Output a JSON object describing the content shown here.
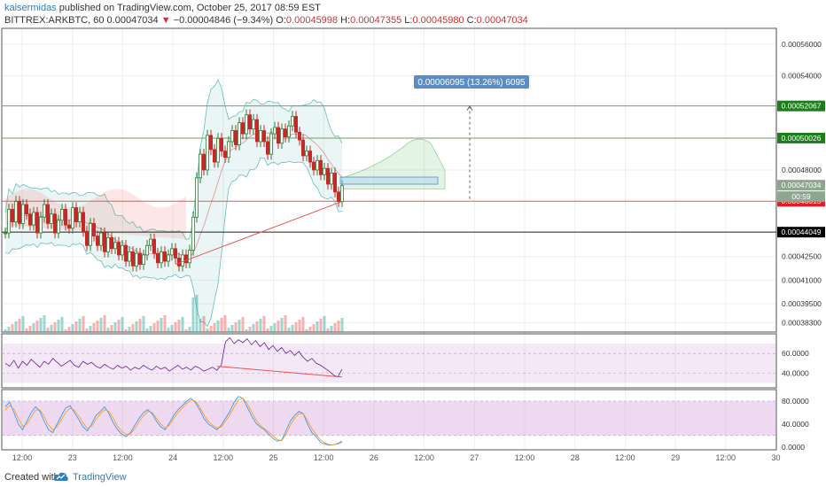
{
  "header": {
    "user": "kaisermidas",
    "published": " published on TradingView.com, October 25, 2017 08:59 EST",
    "symbol": "BITTREX:ARKBTC, 60",
    "last": "0.00047034",
    "change_arrow": "▼",
    "change": "−0.00004846 (−9.34%)",
    "o_label": "O:",
    "o": "0.00045998",
    "h_label": "H:",
    "h": "0.00047355",
    "l_label": "L:",
    "l": "0.00045980",
    "c_label": "C:",
    "c": "0.00047034"
  },
  "footer": {
    "created_with": "Created with",
    "brand": "TradingView"
  },
  "colors": {
    "up": "#26a69a",
    "down": "#ef5350",
    "candle_up_body": "#ffffff",
    "grid": "#eeeeee",
    "green_label": "#1b7e1b",
    "red_label": "#e51c23",
    "black_label": "#000000",
    "grey_green_label": "#8fa58f"
  },
  "chart_data": [
    {
      "type": "candlestick",
      "title": "",
      "x_ticks": [
        "12:00",
        "23",
        "12:00",
        "24",
        "12:00",
        "25",
        "12:00",
        "26",
        "12:00",
        "27",
        "12:00",
        "28",
        "12:00",
        "29",
        "12:00",
        "30"
      ],
      "y_ticks": [
        "0.00056000",
        "0.00054000",
        "0.00048000",
        "0.00042500",
        "0.00041000",
        "0.00039500",
        "0.00038300"
      ],
      "ylim": [
        0.000377,
        0.00057
      ],
      "price_labels": [
        {
          "value": 0.00052067,
          "text": "0.00052067",
          "style": "green"
        },
        {
          "value": 0.00050026,
          "text": "0.00050026",
          "style": "green"
        },
        {
          "value": 0.00047034,
          "text": "0.00047034",
          "style": "greygreen"
        },
        {
          "value": 0.00046015,
          "text": "0.00046015",
          "style": "red"
        },
        {
          "value": 0.00044049,
          "text": "0.00044049",
          "style": "black"
        }
      ],
      "countdown": "00:59",
      "measure_label": "0.00006095 (13.26%) 6095",
      "horizontal_lines": [
        0.00052067,
        0.00050026,
        0.00046015,
        0.00044049
      ],
      "candles_close": [
        0.00044,
        0.000455,
        0.000447,
        0.00046,
        0.000446,
        0.000458,
        0.000452,
        0.000445,
        0.000453,
        0.00044,
        0.00045,
        0.000458,
        0.000446,
        0.000452,
        0.00044,
        0.000448,
        0.000455,
        0.000445,
        0.000443,
        0.000456,
        0.000447,
        0.000453,
        0.000441,
        0.000432,
        0.000446,
        0.000438,
        0.000432,
        0.00044,
        0.000428,
        0.000437,
        0.00043,
        0.000434,
        0.000426,
        0.000432,
        0.000422,
        0.000428,
        0.000419,
        0.000427,
        0.00042,
        0.000426,
        0.000432,
        0.000436,
        0.000427,
        0.000421,
        0.000428,
        0.000422,
        0.000426,
        0.00043,
        0.000424,
        0.000419,
        0.000426,
        0.000421,
        0.000429,
        0.00045,
        0.000475,
        0.00049,
        0.00048,
        0.000502,
        0.000493,
        0.000485,
        0.0005,
        0.000492,
        0.000488,
        0.000498,
        0.000505,
        0.000496,
        0.00051,
        0.000503,
        0.000515,
        0.000506,
        0.000512,
        0.000498,
        0.000505,
        0.000498,
        0.00049,
        0.000503,
        0.000507,
        0.000497,
        0.000506,
        0.000501,
        0.000508,
        0.000514,
        0.000504,
        0.000499,
        0.000489,
        0.000492,
        0.000485,
        0.00048,
        0.000486,
        0.000477,
        0.000481,
        0.000471,
        0.000478,
        0.000466,
        0.00046,
        0.00047
      ]
    },
    {
      "type": "line",
      "name": "",
      "y_ticks": [
        "60.0000",
        "40.0000"
      ],
      "ylim": [
        25,
        80
      ],
      "values": [
        50,
        47,
        53,
        45,
        52,
        48,
        54,
        50,
        46,
        52,
        49,
        55,
        51,
        47,
        50,
        53,
        48,
        46,
        52,
        49,
        51,
        47,
        45,
        49,
        46,
        44,
        48,
        45,
        47,
        43,
        46,
        44,
        48,
        45,
        43,
        47,
        44,
        46,
        42,
        45,
        48,
        44,
        46,
        43,
        47,
        45,
        42,
        44,
        46,
        43,
        48,
        72,
        76,
        70,
        74,
        71,
        75,
        69,
        73,
        67,
        71,
        64,
        68,
        62,
        66,
        60,
        63,
        58,
        62,
        56,
        52,
        55,
        50,
        48,
        45,
        42,
        38,
        36,
        44
      ],
      "divergence_line": {
        "from_index": 49,
        "from": 47,
        "to_index": 78,
        "to": 36
      }
    },
    {
      "type": "line",
      "name": "",
      "y_ticks": [
        "80.0000",
        "40.0000",
        "0.0000"
      ],
      "ylim": [
        -5,
        100
      ],
      "series": [
        {
          "color": "#2196f3",
          "values": [
            70,
            78,
            60,
            40,
            30,
            45,
            60,
            70,
            62,
            45,
            30,
            25,
            40,
            55,
            68,
            72,
            60,
            48,
            35,
            28,
            40,
            55,
            62,
            70,
            58,
            42,
            30,
            22,
            18,
            25,
            38,
            50,
            60,
            65,
            58,
            45,
            35,
            30,
            42,
            55,
            65,
            72,
            80,
            85,
            78,
            65,
            50,
            40,
            35,
            30,
            38,
            50,
            62,
            78,
            88,
            85,
            70,
            55,
            42,
            35,
            30,
            22,
            15,
            10,
            12,
            28,
            45,
            55,
            62,
            58,
            40,
            25,
            18,
            8,
            5,
            3,
            4,
            6,
            10
          ]
        },
        {
          "color": "#ff9800",
          "values": [
            65,
            72,
            66,
            50,
            36,
            40,
            52,
            64,
            65,
            53,
            38,
            30,
            35,
            48,
            60,
            68,
            64,
            54,
            42,
            32,
            36,
            48,
            58,
            65,
            62,
            50,
            36,
            27,
            22,
            23,
            32,
            44,
            54,
            62,
            60,
            50,
            40,
            33,
            38,
            50,
            60,
            68,
            76,
            82,
            80,
            70,
            56,
            45,
            38,
            33,
            35,
            45,
            56,
            70,
            82,
            85,
            76,
            62,
            48,
            38,
            32,
            26,
            19,
            13,
            11,
            22,
            38,
            50,
            58,
            58,
            46,
            32,
            22,
            12,
            7,
            4,
            4,
            5,
            8
          ]
        }
      ],
      "band": [
        20,
        80
      ]
    }
  ]
}
